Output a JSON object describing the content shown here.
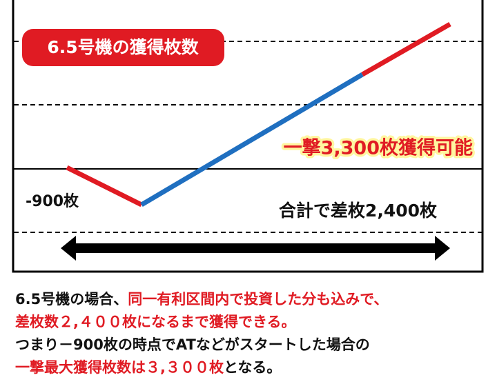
{
  "badge": "6.5号機の獲得枚数",
  "callout": "一撃3,300枚獲得可能",
  "low_label": "-900枚",
  "total_label": "合計で差枚2,400枚",
  "caption": [
    [
      "6.5号機の場合、",
      "同一有利区間内で投資した分も込みで、"
    ],
    [
      "差枚数２,４００枚になるまで獲得できる。"
    ],
    [
      "つまり－900枚の時点でATなどがスタートした場合の"
    ],
    [
      "一撃最大獲得枚数は３,３００枚",
      "となる。"
    ]
  ]
}
